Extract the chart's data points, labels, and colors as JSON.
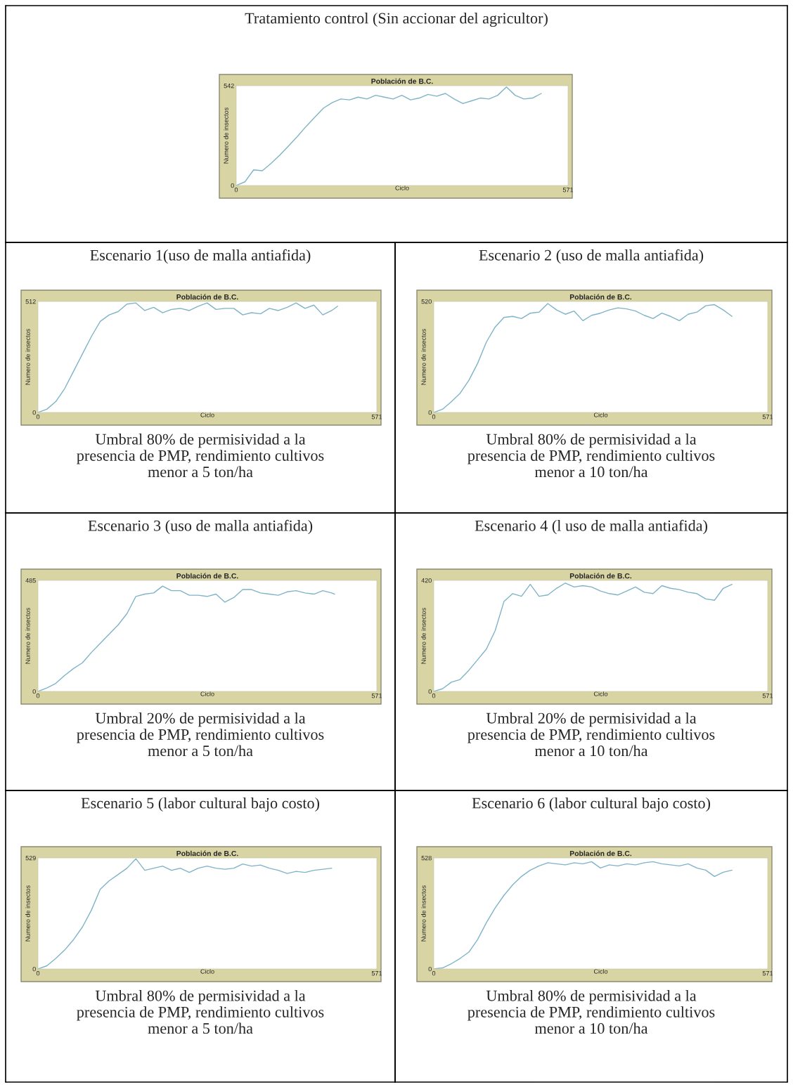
{
  "chart_data": [
    {
      "type": "line",
      "title": "Tratamiento control (Sin accionar del agricultor)",
      "subtitle": "Población de B.C.",
      "xlabel": "Ciclo",
      "ylabel": "Numero de insectos",
      "xlim": [
        0,
        571
      ],
      "xticks": [
        0,
        571
      ],
      "ylim": [
        0,
        542
      ],
      "yticks": [
        0,
        542
      ],
      "x": [
        0,
        15,
        30,
        45,
        60,
        75,
        90,
        105,
        120,
        135,
        150,
        165,
        180,
        195,
        210,
        225,
        240,
        255,
        270,
        285,
        300,
        315,
        330,
        345,
        360,
        375,
        390,
        405,
        420,
        435,
        450,
        465,
        480,
        495,
        510,
        525
      ],
      "series": [
        {
          "color": "#7fb3c8",
          "values": [
            0,
            20,
            85,
            80,
            120,
            165,
            215,
            265,
            320,
            370,
            420,
            450,
            470,
            465,
            480,
            470,
            490,
            480,
            470,
            490,
            465,
            475,
            495,
            485,
            500,
            470,
            445,
            460,
            475,
            470,
            490,
            535,
            490,
            470,
            475,
            500
          ]
        }
      ]
    },
    {
      "type": "line",
      "title": "Escenario 1(uso de malla antiafida)",
      "subtitle": "Población de B.C.",
      "xlabel": "Ciclo",
      "ylabel": "Numero de insectos",
      "xlim": [
        0,
        571
      ],
      "xticks": [
        0,
        571
      ],
      "ylim": [
        0,
        512
      ],
      "yticks": [
        0,
        512
      ],
      "annotations": [
        "Umbral 80% de permisividad a la\npresencia de PMP, rendimiento cultivos\nmenor a 5 ton/ha"
      ],
      "x": [
        0,
        15,
        30,
        45,
        60,
        75,
        90,
        105,
        120,
        135,
        150,
        165,
        180,
        195,
        210,
        225,
        240,
        255,
        270,
        285,
        300,
        315,
        330,
        345,
        360,
        375,
        390,
        405,
        420,
        435,
        450,
        465,
        480,
        495,
        505
      ],
      "series": [
        {
          "color": "#7fb3c8",
          "values": [
            0,
            15,
            50,
            110,
            190,
            270,
            350,
            420,
            450,
            465,
            500,
            505,
            470,
            485,
            460,
            475,
            480,
            470,
            490,
            505,
            475,
            480,
            480,
            450,
            460,
            455,
            480,
            470,
            485,
            505,
            480,
            495,
            450,
            470,
            490
          ]
        }
      ]
    },
    {
      "type": "line",
      "title": "Escenario 2 (uso de malla antiafida)",
      "subtitle": "Población de B.C.",
      "xlabel": "Ciclo",
      "ylabel": "Numero de insectos",
      "xlim": [
        0,
        571
      ],
      "xticks": [
        0,
        571
      ],
      "ylim": [
        0,
        520
      ],
      "yticks": [
        0,
        520
      ],
      "annotations": [
        "Umbral 80% de permisividad a la\npresencia de PMP, rendimiento cultivos\nmenor a 10 ton/ha"
      ],
      "x": [
        0,
        15,
        30,
        45,
        60,
        75,
        90,
        105,
        120,
        135,
        150,
        165,
        180,
        195,
        210,
        225,
        240,
        255,
        270,
        285,
        300,
        315,
        330,
        345,
        360,
        375,
        390,
        405,
        420,
        435,
        450,
        465,
        480,
        495,
        510
      ],
      "series": [
        {
          "color": "#7fb3c8",
          "values": [
            0,
            15,
            50,
            90,
            150,
            230,
            330,
            400,
            445,
            450,
            440,
            465,
            470,
            510,
            480,
            460,
            475,
            430,
            455,
            465,
            480,
            490,
            485,
            475,
            455,
            440,
            465,
            450,
            430,
            460,
            470,
            500,
            505,
            480,
            450
          ]
        }
      ]
    },
    {
      "type": "line",
      "title": "Escenario 3 (uso de malla antiafida)",
      "subtitle": "Población de B.C.",
      "xlabel": "Ciclo",
      "ylabel": "Numero de insectos",
      "xlim": [
        0,
        571
      ],
      "xticks": [
        0,
        571
      ],
      "ylim": [
        0,
        485
      ],
      "yticks": [
        0,
        485
      ],
      "annotations": [
        "Umbral 20% de permisividad a la\npresencia de PMP, rendimiento cultivos\nmenor a 5 ton/ha"
      ],
      "x": [
        0,
        15,
        30,
        45,
        60,
        75,
        90,
        105,
        120,
        135,
        150,
        165,
        180,
        195,
        210,
        225,
        240,
        255,
        270,
        285,
        300,
        315,
        330,
        345,
        360,
        375,
        390,
        405,
        420,
        435,
        450,
        465,
        480,
        495,
        500
      ],
      "series": [
        {
          "color": "#7fb3c8",
          "values": [
            0,
            15,
            35,
            70,
            100,
            125,
            170,
            210,
            250,
            290,
            340,
            415,
            425,
            430,
            460,
            440,
            440,
            420,
            420,
            415,
            425,
            390,
            410,
            445,
            445,
            430,
            425,
            420,
            435,
            440,
            430,
            425,
            440,
            430,
            425
          ]
        }
      ]
    },
    {
      "type": "line",
      "title": "Escenario 4 (l uso de malla antiafida)",
      "subtitle": "Población de B.C.",
      "xlabel": "Ciclo",
      "ylabel": "Numero de insectos",
      "xlim": [
        0,
        571
      ],
      "xticks": [
        0,
        571
      ],
      "ylim": [
        0,
        420
      ],
      "yticks": [
        0,
        420
      ],
      "annotations": [
        "Umbral 20% de permisividad a la\npresencia de PMP, rendimiento cultivos\nmenor a 10 ton/ha"
      ],
      "x": [
        0,
        15,
        30,
        45,
        60,
        75,
        90,
        105,
        120,
        135,
        150,
        165,
        180,
        195,
        210,
        225,
        240,
        255,
        270,
        285,
        300,
        315,
        330,
        345,
        360,
        375,
        390,
        405,
        420,
        435,
        450,
        465,
        480,
        495,
        510
      ],
      "series": [
        {
          "color": "#7fb3c8",
          "values": [
            0,
            10,
            35,
            45,
            80,
            120,
            160,
            230,
            340,
            370,
            360,
            405,
            360,
            365,
            390,
            410,
            395,
            400,
            395,
            380,
            370,
            365,
            380,
            395,
            375,
            370,
            400,
            390,
            385,
            375,
            370,
            350,
            345,
            390,
            405
          ]
        }
      ]
    },
    {
      "type": "line",
      "title": "Escenario 5 (labor cultural bajo costo)",
      "subtitle": "Población de B.C.",
      "xlabel": "Ciclo",
      "ylabel": "Numero de insectos",
      "xlim": [
        0,
        571
      ],
      "xticks": [
        0,
        571
      ],
      "ylim": [
        0,
        529
      ],
      "yticks": [
        0,
        529
      ],
      "annotations": [
        "Umbral 80% de permisividad a la\npresencia de PMP, rendimiento cultivos\nmenor a 5 ton/ha"
      ],
      "x": [
        0,
        15,
        30,
        45,
        60,
        75,
        90,
        105,
        120,
        135,
        150,
        165,
        180,
        195,
        210,
        225,
        240,
        255,
        270,
        285,
        300,
        315,
        330,
        345,
        360,
        375,
        390,
        405,
        420,
        435,
        450,
        465,
        480,
        495
      ],
      "series": [
        {
          "color": "#7fb3c8",
          "values": [
            0,
            15,
            50,
            90,
            140,
            200,
            280,
            380,
            420,
            450,
            480,
            525,
            470,
            480,
            490,
            470,
            480,
            460,
            480,
            490,
            480,
            475,
            480,
            500,
            490,
            495,
            480,
            470,
            455,
            465,
            460,
            470,
            475,
            480
          ]
        }
      ]
    },
    {
      "type": "line",
      "title": "Escenario 6 (labor cultural bajo costo)",
      "subtitle": "Población de B.C.",
      "xlabel": "Ciclo",
      "ylabel": "Numero de insectos",
      "xlim": [
        0,
        571
      ],
      "xticks": [
        0,
        571
      ],
      "ylim": [
        0,
        528
      ],
      "yticks": [
        0,
        528
      ],
      "annotations": [
        "Umbral 80% de permisividad a la\npresencia de PMP, rendimiento cultivos\nmenor a 10 ton/ha"
      ],
      "x": [
        0,
        15,
        30,
        45,
        60,
        75,
        90,
        105,
        120,
        135,
        150,
        165,
        180,
        195,
        210,
        225,
        240,
        255,
        270,
        285,
        300,
        315,
        330,
        345,
        360,
        375,
        390,
        405,
        420,
        435,
        450,
        465,
        480,
        495,
        510
      ],
      "series": [
        {
          "color": "#7fb3c8",
          "values": [
            0,
            5,
            25,
            50,
            80,
            140,
            220,
            290,
            350,
            400,
            440,
            470,
            490,
            505,
            500,
            495,
            505,
            500,
            510,
            480,
            495,
            490,
            500,
            495,
            505,
            510,
            500,
            495,
            490,
            500,
            480,
            470,
            440,
            460,
            470
          ]
        }
      ]
    }
  ]
}
